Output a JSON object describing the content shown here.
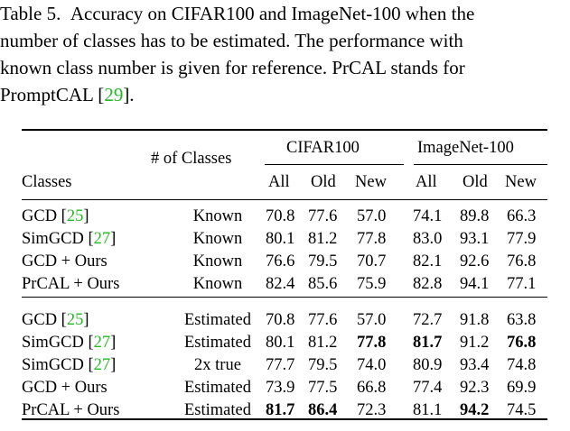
{
  "caption": {
    "label": "Table 5.",
    "lines": [
      "Accuracy on CIFAR100 and ImageNet-100 when the",
      "number of classes has to be estimated.  The performance with",
      "known class number is given for reference.  PrCAL stands for",
      "PromptCAL ["
    ],
    "cite": "29",
    "tail": "]."
  },
  "table": {
    "header": {
      "classes": "Classes",
      "num_classes": "# of Classes",
      "group1": "CIFAR100",
      "group2": "ImageNet-100",
      "subcols": [
        "All",
        "Old",
        "New",
        "All",
        "Old",
        "New"
      ]
    },
    "section1": [
      {
        "method": "GCD [",
        "cite": "25",
        "close": "]",
        "n": "Known",
        "vals": [
          "70.8",
          "77.6",
          "57.0",
          "74.1",
          "89.8",
          "66.3"
        ],
        "bold": []
      },
      {
        "method": "SimGCD [",
        "cite": "27",
        "close": "]",
        "n": "Known",
        "vals": [
          "80.1",
          "81.2",
          "77.8",
          "83.0",
          "93.1",
          "77.9"
        ],
        "bold": []
      },
      {
        "method": "GCD + Ours",
        "cite": "",
        "close": "",
        "n": "Known",
        "vals": [
          "76.6",
          "79.5",
          "70.7",
          "82.1",
          "92.6",
          "76.8"
        ],
        "bold": []
      },
      {
        "method": "PrCAL + Ours",
        "cite": "",
        "close": "",
        "n": "Known",
        "vals": [
          "82.4",
          "85.6",
          "75.9",
          "82.8",
          "94.1",
          "77.1"
        ],
        "bold": []
      }
    ],
    "section2": [
      {
        "method": "GCD [",
        "cite": "25",
        "close": "]",
        "n": "Estimated",
        "vals": [
          "70.8",
          "77.6",
          "57.0",
          "72.7",
          "91.8",
          "63.8"
        ],
        "bold": []
      },
      {
        "method": "SimGCD [",
        "cite": "27",
        "close": "]",
        "n": "Estimated",
        "vals": [
          "80.1",
          "81.2",
          "77.8",
          "81.7",
          "91.2",
          "76.8"
        ],
        "bold": [
          2,
          3,
          5
        ]
      },
      {
        "method": "SimGCD [",
        "cite": "27",
        "close": "]",
        "n": "2x true",
        "vals": [
          "77.7",
          "79.5",
          "74.0",
          "80.9",
          "93.4",
          "74.8"
        ],
        "bold": []
      },
      {
        "method": "GCD + Ours",
        "cite": "",
        "close": "",
        "n": "Estimated",
        "vals": [
          "73.9",
          "77.5",
          "66.8",
          "77.4",
          "92.3",
          "69.9"
        ],
        "bold": []
      },
      {
        "method": "PrCAL + Ours",
        "cite": "",
        "close": "",
        "n": "Estimated",
        "vals": [
          "81.7",
          "86.4",
          "72.3",
          "81.1",
          "94.2",
          "74.5"
        ],
        "bold": [
          0,
          1,
          4
        ]
      }
    ]
  }
}
